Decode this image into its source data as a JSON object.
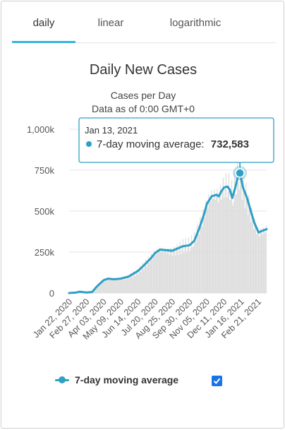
{
  "tabs": [
    {
      "label": "daily",
      "active": true
    },
    {
      "label": "linear",
      "active": false
    },
    {
      "label": "logarithmic",
      "active": false
    }
  ],
  "legend": {
    "label": "7-day moving average",
    "checked": true
  },
  "tooltip": {
    "date": "Jan 13, 2021",
    "label": "7-day moving average:",
    "value": "732,583"
  },
  "colors": {
    "series": "#2e9fc5",
    "bars": "#dcdcdc",
    "tab_underline": "#33b5e5",
    "checkbox": "#1a73e8"
  },
  "chart_data": {
    "type": "line",
    "title": "Daily New Cases",
    "subtitle_lines": [
      "Cases per Day",
      "Data as of 0:00 GMT+0"
    ],
    "x_tick_labels": [
      "Jan 22, 2020",
      "Feb 27, 2020",
      "Apr 03, 2020",
      "May 09, 2020",
      "Jun 14, 2020",
      "Jul 20, 2020",
      "Aug 25, 2020",
      "Sep 30, 2020",
      "Nov 05, 2020",
      "Dec 11, 2020",
      "Jan 16, 2021",
      "Feb 21, 2021"
    ],
    "y_ticks": [
      0,
      250000,
      500000,
      750000,
      1000000
    ],
    "y_tick_labels": [
      "0",
      "250k",
      "500k",
      "750k",
      "1,000k"
    ],
    "ylim": [
      0,
      1000000
    ],
    "xlim": [
      "2020-01-22",
      "2021-03-10"
    ],
    "grid": true,
    "legend_position": "bottom",
    "highlight": {
      "date": "2021-01-13",
      "value": 732583
    },
    "series": [
      {
        "name": "7-day moving average",
        "points": [
          [
            "2020-01-22",
            0
          ],
          [
            "2020-02-05",
            2500
          ],
          [
            "2020-02-13",
            8000
          ],
          [
            "2020-02-27",
            3000
          ],
          [
            "2020-03-10",
            6000
          ],
          [
            "2020-03-20",
            40000
          ],
          [
            "2020-04-03",
            78000
          ],
          [
            "2020-04-12",
            88000
          ],
          [
            "2020-04-25",
            84000
          ],
          [
            "2020-05-09",
            88000
          ],
          [
            "2020-05-25",
            100000
          ],
          [
            "2020-06-14",
            135000
          ],
          [
            "2020-06-25",
            165000
          ],
          [
            "2020-07-10",
            210000
          ],
          [
            "2020-07-20",
            245000
          ],
          [
            "2020-07-30",
            265000
          ],
          [
            "2020-08-10",
            262000
          ],
          [
            "2020-08-25",
            258000
          ],
          [
            "2020-09-05",
            272000
          ],
          [
            "2020-09-15",
            285000
          ],
          [
            "2020-09-30",
            292000
          ],
          [
            "2020-10-10",
            320000
          ],
          [
            "2020-10-20",
            395000
          ],
          [
            "2020-10-30",
            480000
          ],
          [
            "2020-11-05",
            545000
          ],
          [
            "2020-11-15",
            590000
          ],
          [
            "2020-11-25",
            600000
          ],
          [
            "2020-11-30",
            590000
          ],
          [
            "2020-12-05",
            620000
          ],
          [
            "2020-12-11",
            645000
          ],
          [
            "2020-12-18",
            650000
          ],
          [
            "2020-12-23",
            630000
          ],
          [
            "2020-12-28",
            580000
          ],
          [
            "2021-01-03",
            640000
          ],
          [
            "2021-01-08",
            700000
          ],
          [
            "2021-01-13",
            732583
          ],
          [
            "2021-01-20",
            640000
          ],
          [
            "2021-01-28",
            580000
          ],
          [
            "2021-02-04",
            510000
          ],
          [
            "2021-02-12",
            430000
          ],
          [
            "2021-02-21",
            370000
          ],
          [
            "2021-03-01",
            380000
          ],
          [
            "2021-03-10",
            390000
          ]
        ]
      }
    ]
  }
}
